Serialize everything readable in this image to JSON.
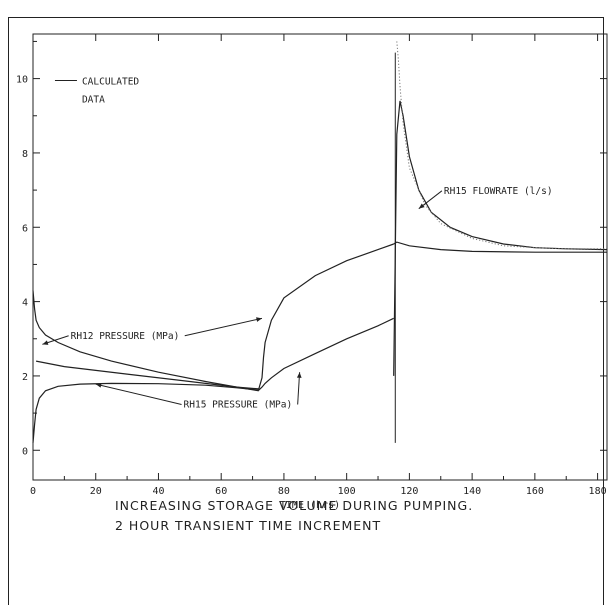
{
  "figure": {
    "caption_line1": "INCREASING STORAGE VOLUME DURING PUMPING.",
    "caption_line2": "2 HOUR TRANSIENT TIME INCREMENT"
  },
  "chart_data": {
    "type": "line",
    "title": "",
    "xlabel": "TIME (hrs)",
    "ylabel": "",
    "xlim": [
      0,
      183
    ],
    "ylim": [
      -0.8,
      11.2
    ],
    "xticks": [
      0,
      20,
      40,
      60,
      80,
      100,
      120,
      140,
      160,
      180
    ],
    "yticks": [
      0,
      2,
      4,
      6,
      8,
      10
    ],
    "grid": false,
    "legend": {
      "placement": "top-left",
      "line_label": "CALCULATED",
      "data_label": "DATA"
    },
    "annotations": [
      {
        "text": "RH12 PRESSURE (MPa)",
        "x": 12,
        "y": 3.0,
        "arrow_to": [
          3,
          2.85
        ],
        "arrow2_to": [
          73,
          3.55
        ]
      },
      {
        "text": "RH15 PRESSURE (MPa)",
        "x": 48,
        "y": 1.15,
        "arrow_to": [
          20,
          1.78
        ],
        "arrow2_to": [
          85,
          2.1
        ]
      },
      {
        "text": "RH15 FLOWRATE (l/s)",
        "x": 131,
        "y": 6.9,
        "arrow_to": [
          123,
          6.5
        ]
      }
    ],
    "series": [
      {
        "style": "solid",
        "x": [
          0,
          0.5,
          1,
          2,
          4,
          8,
          15,
          25,
          40,
          55,
          65,
          72,
          73,
          73.5,
          74,
          76,
          80,
          90,
          100,
          110,
          115
        ],
        "y": [
          4.3,
          3.8,
          3.5,
          3.3,
          3.1,
          2.9,
          2.65,
          2.4,
          2.1,
          1.85,
          1.7,
          1.65,
          1.95,
          2.5,
          2.9,
          3.5,
          4.1,
          4.7,
          5.1,
          5.4,
          5.55
        ]
      },
      {
        "style": "solid",
        "x": [
          0,
          0.5,
          1,
          2,
          4,
          8,
          15,
          25,
          40,
          55,
          65,
          72,
          73,
          74,
          76,
          80,
          90,
          100,
          110,
          115
        ],
        "y": [
          0.2,
          0.7,
          1.1,
          1.4,
          1.6,
          1.72,
          1.78,
          1.8,
          1.79,
          1.75,
          1.68,
          1.62,
          1.7,
          1.8,
          1.95,
          2.2,
          2.6,
          3.0,
          3.35,
          3.55
        ]
      },
      {
        "style": "solid",
        "x": [
          1,
          10,
          30,
          50,
          65,
          72
        ],
        "y": [
          2.4,
          2.25,
          2.05,
          1.85,
          1.7,
          1.6
        ]
      },
      {
        "style": "solid",
        "x": [
          115,
          116,
          117,
          118,
          120,
          123,
          127,
          133,
          140,
          150,
          160,
          170,
          183
        ],
        "y": [
          2.0,
          8.5,
          9.4,
          9.0,
          7.9,
          7.0,
          6.4,
          6.0,
          5.75,
          5.55,
          5.45,
          5.42,
          5.4
        ]
      },
      {
        "style": "solid",
        "x": [
          115,
          116,
          120,
          130,
          140,
          160,
          183
        ],
        "y": [
          5.55,
          5.6,
          5.5,
          5.4,
          5.35,
          5.33,
          5.33
        ]
      },
      {
        "style": "dotted",
        "x": [
          116,
          116.5,
          117,
          118,
          120,
          125,
          130,
          140,
          150,
          160,
          170,
          183
        ],
        "y": [
          11.0,
          10.5,
          9.8,
          8.8,
          7.6,
          6.6,
          6.1,
          5.7,
          5.5,
          5.45,
          5.42,
          5.42
        ]
      }
    ],
    "vertical_line": {
      "x": 115.5,
      "y_from": 0.2,
      "y_to": 10.7
    }
  }
}
